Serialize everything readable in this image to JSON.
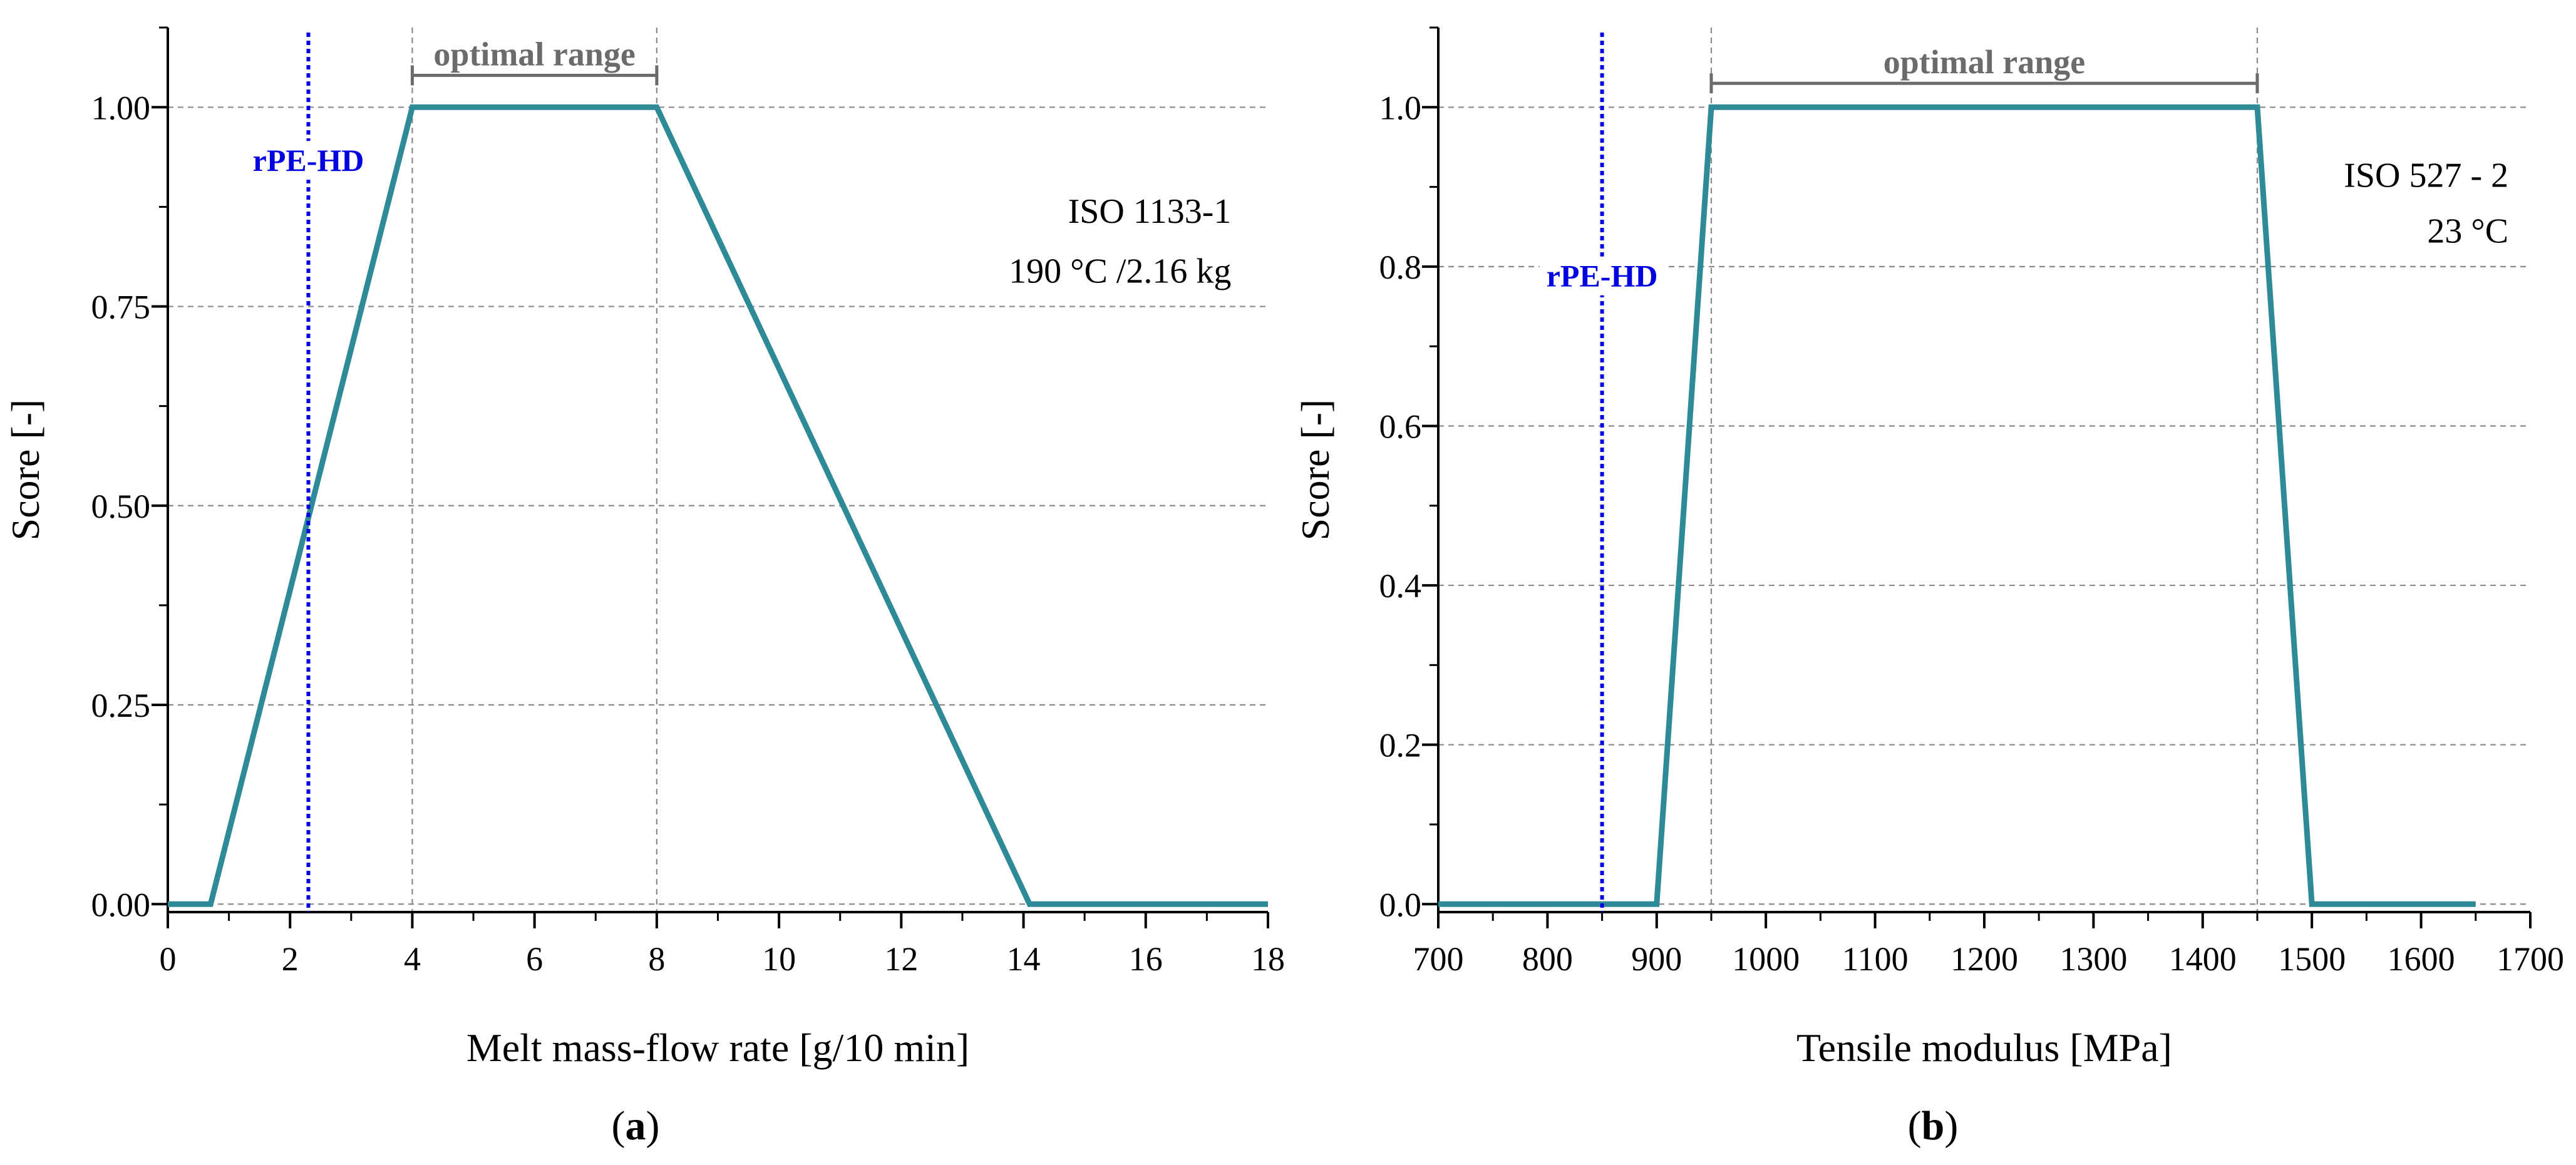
{
  "chart_data": [
    {
      "type": "line",
      "panel_label": "(a)",
      "panel_letter": "a",
      "xlabel": "Melt mass-flow rate [g/10 min]",
      "ylabel": "Score [-]",
      "xlim": [
        0,
        18
      ],
      "ylim": [
        -0.01,
        1.1
      ],
      "xticks": [
        0,
        2,
        4,
        6,
        8,
        10,
        12,
        14,
        16,
        18
      ],
      "xtick_labels": [
        "0",
        "2",
        "4",
        "6",
        "8",
        "10",
        "12",
        "14",
        "16",
        "18"
      ],
      "xminor_step": 1,
      "yticks": [
        0,
        0.25,
        0.5,
        0.75,
        1.0
      ],
      "ytick_labels": [
        "0.00",
        "0.25",
        "0.50",
        "0.75",
        "1.00"
      ],
      "yminor_step": 0.125,
      "grid": "dashed",
      "series": [
        {
          "name": "score",
          "color": "#2e8a96",
          "x": [
            0,
            0.7,
            4,
            8,
            14.1,
            18
          ],
          "y": [
            0,
            0,
            1,
            1,
            0,
            0
          ]
        }
      ],
      "vertical_guides": [
        4,
        8
      ],
      "marker": {
        "label": "rPE-HD",
        "x": 2.3,
        "label_y": 0.92,
        "color": "#0000e0"
      },
      "optimal_range": {
        "label": "optimal range",
        "x0": 4,
        "x1": 8,
        "y": 1.04,
        "color": "#6b6b6b"
      },
      "annotations": [
        {
          "text": "ISO 1133-1",
          "x": 17.4,
          "y": 0.855,
          "anchor": "end"
        },
        {
          "text": "190 °C /2.16 kg",
          "x": 17.4,
          "y": 0.78,
          "anchor": "end"
        }
      ]
    },
    {
      "type": "line",
      "panel_label": "(b)",
      "panel_letter": "b",
      "xlabel": "Tensile modulus [MPa]",
      "ylabel": "Score [-]",
      "xlim": [
        700,
        1700
      ],
      "ylim": [
        -0.01,
        1.1
      ],
      "xticks": [
        700,
        800,
        900,
        1000,
        1100,
        1200,
        1300,
        1400,
        1500,
        1600,
        1700
      ],
      "xtick_labels": [
        "700",
        "800",
        "900",
        "1000",
        "1100",
        "1200",
        "1300",
        "1400",
        "1500",
        "1600",
        "1700"
      ],
      "xminor_step": 50,
      "yticks": [
        0,
        0.2,
        0.4,
        0.6,
        0.8,
        1.0
      ],
      "ytick_labels": [
        "0.0",
        "0.2",
        "0.4",
        "0.6",
        "0.8",
        "1.0"
      ],
      "yminor_step": 0.1,
      "grid": "dashed",
      "series": [
        {
          "name": "score",
          "color": "#2e8a96",
          "x": [
            700,
            900,
            950,
            1450,
            1500,
            1650
          ],
          "y": [
            0,
            0,
            1,
            1,
            0,
            0
          ]
        }
      ],
      "vertical_guides": [
        950,
        1450
      ],
      "marker": {
        "label": "rPE-HD",
        "x": 850,
        "label_y": 0.775,
        "color": "#0000e0"
      },
      "optimal_range": {
        "label": "optimal range",
        "x0": 950,
        "x1": 1450,
        "y": 1.03,
        "color": "#6b6b6b"
      },
      "annotations": [
        {
          "text": "ISO 527 - 2",
          "x": 1680,
          "y": 0.9,
          "anchor": "end"
        },
        {
          "text": "23 °C",
          "x": 1680,
          "y": 0.83,
          "anchor": "end"
        }
      ]
    }
  ]
}
